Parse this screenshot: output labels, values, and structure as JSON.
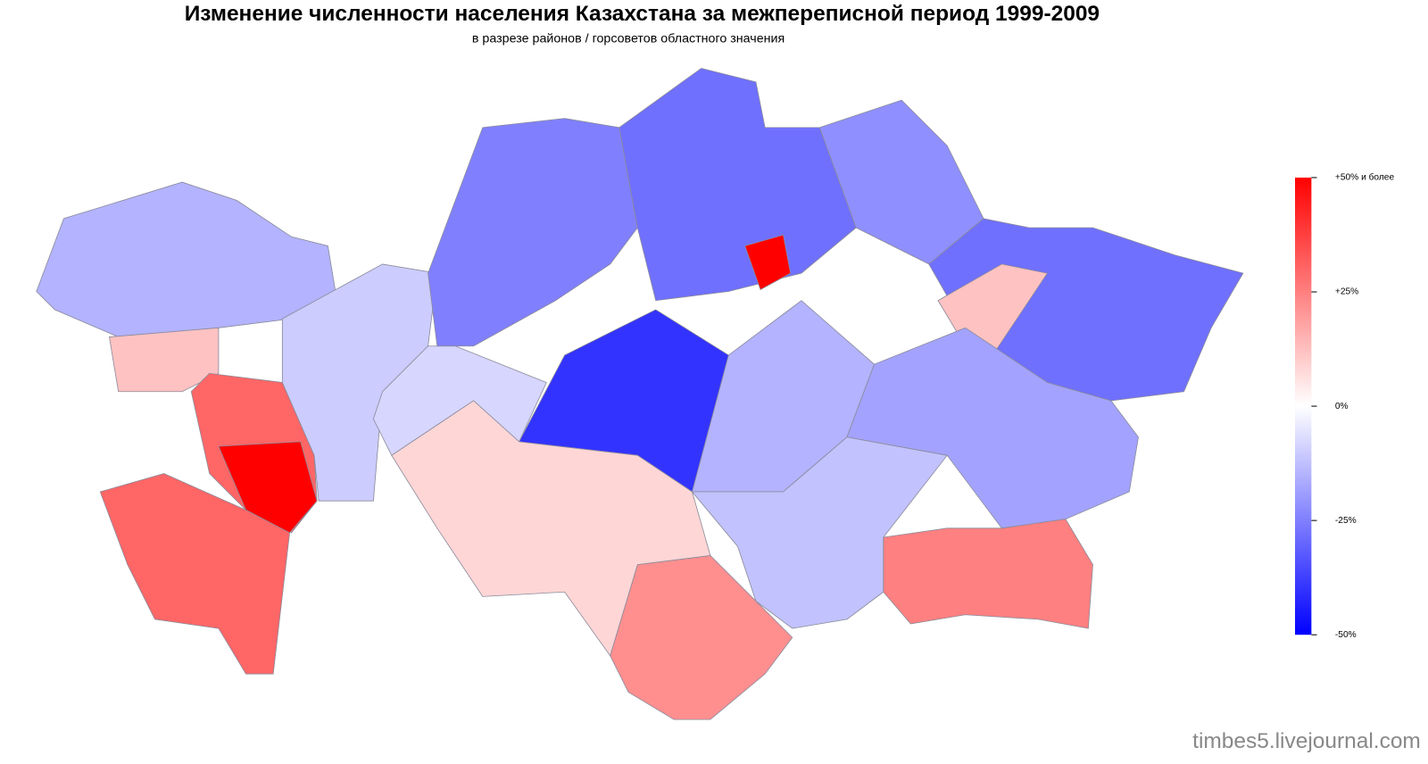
{
  "chart_data": {
    "type": "choropleth",
    "title": "Изменение численности населения Казахстана за межпереписной период 1999-2009",
    "subtitle": "в разрезе районов / горсоветов областного значения",
    "values": [
      -15,
      12,
      30,
      50,
      30,
      -10,
      -8,
      -25,
      -28,
      -22,
      -40,
      -15,
      50,
      -28,
      12,
      -18,
      25,
      -12,
      22,
      8
    ],
    "colors": [
      "#0000ff",
      "#ffffff",
      "#ff0000"
    ],
    "lim": [
      -50,
      50
    ],
    "ticks": [
      {
        "value": 50,
        "label": "+50% и более"
      },
      {
        "value": 25,
        "label": "+25%"
      },
      {
        "value": 0,
        "label": "0%"
      },
      {
        "value": -25,
        "label": "-25%"
      },
      {
        "value": -50,
        "label": "-50%"
      }
    ]
  },
  "watermark": "timbes5.livejournal.com"
}
